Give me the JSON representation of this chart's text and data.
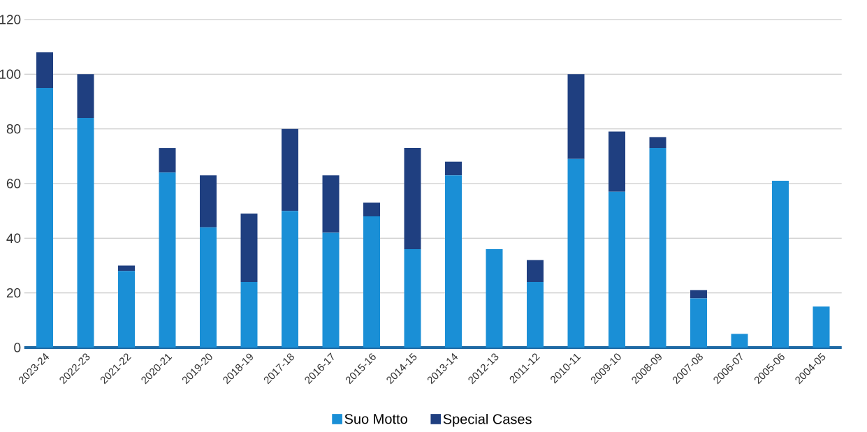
{
  "chart_data": {
    "type": "bar",
    "stacked": true,
    "categories": [
      "2023-24",
      "2022-23",
      "2021-22",
      "2020-21",
      "2019-20",
      "2018-19",
      "2017-18",
      "2016-17",
      "2015-16",
      "2014-15",
      "2013-14",
      "2012-13",
      "2011-12",
      "2010-11",
      "2009-10",
      "2008-09",
      "2007-08",
      "2006-07",
      "2005-06",
      "2004-05"
    ],
    "series": [
      {
        "name": "Suo Motto",
        "color": "#1a8fd6",
        "values": [
          95,
          84,
          28,
          64,
          44,
          24,
          50,
          42,
          48,
          36,
          63,
          36,
          24,
          69,
          57,
          73,
          18,
          5,
          61,
          15
        ]
      },
      {
        "name": "Special Cases",
        "color": "#1f3f80",
        "values": [
          13,
          16,
          2,
          9,
          19,
          25,
          30,
          21,
          5,
          37,
          5,
          0,
          8,
          31,
          22,
          4,
          3,
          0,
          0,
          0
        ]
      }
    ],
    "ylim": [
      0,
      120
    ],
    "yticks": [
      0,
      20,
      40,
      60,
      80,
      100,
      120
    ],
    "grid": "y",
    "legend": "bottom"
  }
}
